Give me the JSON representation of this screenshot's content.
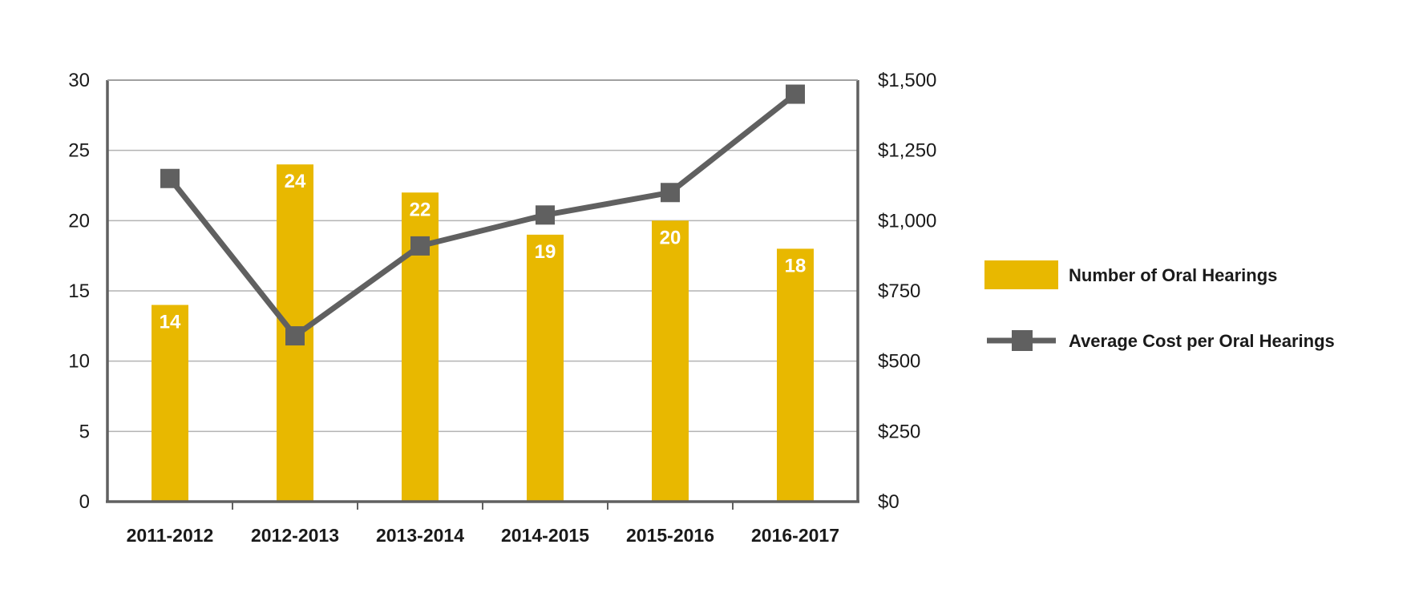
{
  "chart_data": {
    "type": "bar",
    "categories": [
      "2011-2012",
      "2012-2013",
      "2013-2014",
      "2014-2015",
      "2015-2016",
      "2016-2017"
    ],
    "series": [
      {
        "name": "Number of Oral Hearings",
        "type": "bar",
        "axis": "left",
        "color": "#e8b800",
        "values": [
          14,
          24,
          22,
          19,
          20,
          18
        ],
        "value_labels": [
          "14",
          "24",
          "22",
          "19",
          "20",
          "18"
        ]
      },
      {
        "name": "Average Cost per Oral Hearings",
        "type": "line",
        "axis": "right",
        "color": "#606060",
        "marker": "square",
        "values": [
          1150,
          590,
          910,
          1020,
          1100,
          1450
        ]
      }
    ],
    "y_left": {
      "ylim": [
        0,
        30
      ],
      "ticks": [
        0,
        5,
        10,
        15,
        20,
        25,
        30
      ],
      "tick_labels": [
        "0",
        "5",
        "10",
        "15",
        "20",
        "25",
        "30"
      ]
    },
    "y_right": {
      "ylim": [
        0,
        1500
      ],
      "ticks": [
        0,
        250,
        500,
        750,
        1000,
        1250,
        1500
      ],
      "tick_labels": [
        "$0",
        "$250",
        "$500",
        "$750",
        "$1,000",
        "$1,250",
        "$1,500"
      ]
    },
    "grid": true,
    "legend_position": "right",
    "title": "",
    "xlabel": "",
    "ylabel": ""
  }
}
